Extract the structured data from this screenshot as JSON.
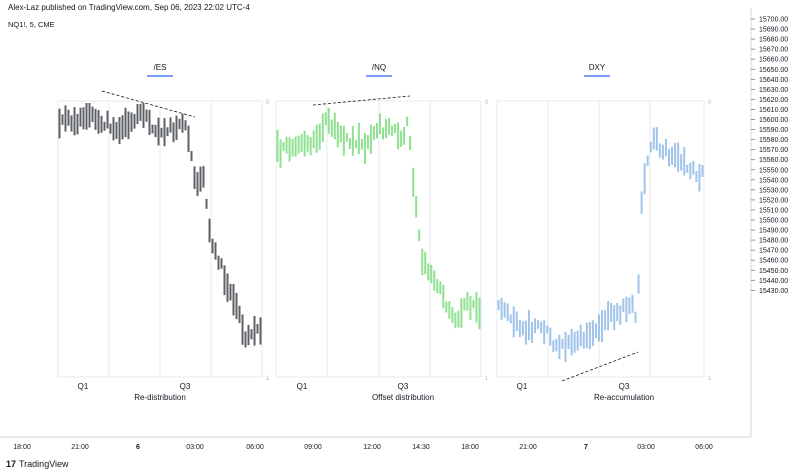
{
  "header": {
    "published": "Alex-Laz published on TradingView.com, Sep 06, 2023 22:02 UTC-4"
  },
  "symbol": {
    "label": "NQ1!, 5, CME"
  },
  "footer": {
    "brand": "TradingView"
  },
  "colors": {
    "es": "#5d6066",
    "nq": "#8fe08f",
    "dxy": "#9fc3ea",
    "tab_underline": "#2962ff",
    "grid": "#e0e3eb",
    "axis": "#131722"
  },
  "panels": [
    {
      "tab": "/ES",
      "caption": "Re-distribution",
      "q1": "Q1",
      "q3": "Q3",
      "corner_top": "0",
      "corner_bottom": "1"
    },
    {
      "tab": "/NQ",
      "caption": "Offset distribution",
      "q1": "Q1",
      "q3": "Q3",
      "corner_top": "0",
      "corner_bottom": "1"
    },
    {
      "tab": "DXY",
      "caption": "Re-accumulation",
      "q1": "Q1",
      "q3": "Q3",
      "corner_top": "0",
      "corner_bottom": "1"
    }
  ],
  "price_axis": {
    "ticks": [
      "15700.00",
      "15690.00",
      "15680.00",
      "15670.00",
      "15660.00",
      "15650.00",
      "15640.00",
      "15630.00",
      "15620.00",
      "15610.00",
      "15600.00",
      "15590.00",
      "15580.00",
      "15570.00",
      "15560.00",
      "15550.00",
      "15540.00",
      "15530.00",
      "15520.00",
      "15510.00",
      "15500.00",
      "15490.00",
      "15480.00",
      "15470.00",
      "15460.00",
      "15450.00",
      "15440.00",
      "15430.00"
    ]
  },
  "time_axis": {
    "ticks": [
      {
        "label": "18:00",
        "bold": false
      },
      {
        "label": "21:00",
        "bold": false
      },
      {
        "label": "6",
        "bold": true
      },
      {
        "label": "03:00",
        "bold": false
      },
      {
        "label": "06:00",
        "bold": false
      },
      {
        "label": "09:00",
        "bold": false
      },
      {
        "label": "12:00",
        "bold": false
      },
      {
        "label": "14:30",
        "bold": false
      },
      {
        "label": "18:00",
        "bold": false
      },
      {
        "label": "21:00",
        "bold": false
      },
      {
        "label": "7",
        "bold": true
      },
      {
        "label": "03:00",
        "bold": false
      },
      {
        "label": "06:00",
        "bold": false
      }
    ]
  }
}
